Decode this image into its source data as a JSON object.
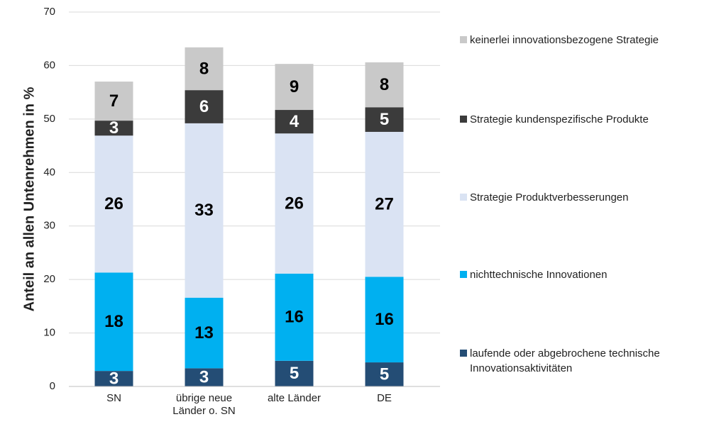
{
  "chart_data": {
    "type": "stacked_bar",
    "y_label": "Anteil an allen Untenrehmen in %",
    "categories": [
      "SN",
      "übrige neue Länder o. SN",
      "alte Länder",
      "DE"
    ],
    "series": [
      {
        "name": "laufende oder abgebrochene technische Innovationsaktivitäten",
        "color": "#244d75",
        "label_color": "#ffffff",
        "values": [
          2.9,
          3.4,
          4.8,
          4.5
        ],
        "value_labels": [
          "3",
          "3",
          "5",
          "5"
        ]
      },
      {
        "name": "nichttechnische Innovationen",
        "color": "#00b0f0",
        "label_color": "#000000",
        "values": [
          18.4,
          13.2,
          16.3,
          16.0
        ],
        "value_labels": [
          "18",
          "13",
          "16",
          "16"
        ]
      },
      {
        "name": "Strategie Produktverbesserungen",
        "color": "#dae3f3",
        "label_color": "#000000",
        "values": [
          25.6,
          32.6,
          26.2,
          27.1
        ],
        "value_labels": [
          "26",
          "33",
          "26",
          "27"
        ]
      },
      {
        "name": "Strategie kundenspezifische Produkte",
        "color": "#3b3b3b",
        "label_color": "#ffffff",
        "values": [
          2.8,
          6.2,
          4.4,
          4.6
        ],
        "value_labels": [
          "3",
          "6",
          "4",
          "5"
        ]
      },
      {
        "name": "keinerlei innovationsbezogene Strategie",
        "color": "#c9c9c9",
        "label_color": "#000000",
        "values": [
          7.3,
          8.0,
          8.6,
          8.4
        ],
        "value_labels": [
          "7",
          "8",
          "9",
          "8"
        ]
      }
    ],
    "ylim": [
      0,
      70
    ],
    "yticks": [
      0,
      10,
      20,
      30,
      40,
      50,
      60,
      70
    ],
    "grid": true,
    "legend": "right"
  }
}
